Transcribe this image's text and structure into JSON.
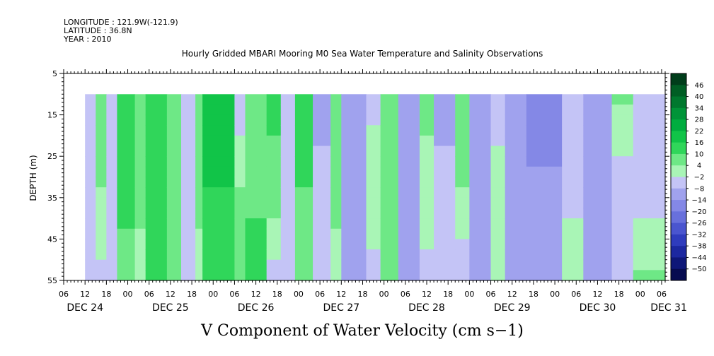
{
  "header": {
    "longitude": "LONGITUDE : 121.9W(-121.9)",
    "latitude": "LATITUDE : 36.8N",
    "year": "YEAR : 2010"
  },
  "chart_data": {
    "type": "heatmap",
    "title": "Hourly Gridded MBARI Mooring M0 Sea Water Temperature and Salinity Observations",
    "xlabel": "V Component of Water Velocity (cm s−1)",
    "ylabel": "DEPTH (m)",
    "ylim": [
      55,
      5
    ],
    "xlim": [
      "DEC 24 06",
      "DEC 31 07"
    ],
    "y_ticks": [
      "5",
      "15",
      "25",
      "35",
      "45",
      "55"
    ],
    "hour_ticks": [
      "06",
      "12",
      "18",
      "00",
      "06",
      "12",
      "18",
      "00",
      "06",
      "12",
      "18",
      "00",
      "06",
      "12",
      "18",
      "00",
      "06",
      "12",
      "18",
      "00",
      "06",
      "12",
      "18",
      "00",
      "06",
      "12",
      "18",
      "00",
      "06"
    ],
    "date_ticks": [
      "DEC 24",
      "DEC 25",
      "DEC 26",
      "DEC 27",
      "DEC 28",
      "DEC 29",
      "DEC 30",
      "DEC 31"
    ],
    "data_depth_range": [
      10,
      55
    ],
    "data_start": "DEC 24 12",
    "colorbar_labels": [
      "46",
      "40",
      "34",
      "28",
      "22",
      "16",
      "10",
      "4",
      "−2",
      "−8",
      "−14",
      "−20",
      "−26",
      "−32",
      "−38",
      "−44",
      "−50"
    ],
    "colorbar_colors": [
      "#003d1a",
      "#005e24",
      "#00782e",
      "#009438",
      "#00ad3f",
      "#11c448",
      "#30d65a",
      "#6ee886",
      "#a9f5b6",
      "#c4c4f6",
      "#a0a2ee",
      "#8488e6",
      "#6870dc",
      "#4a55cf",
      "#2f3cbd",
      "#1c28a0",
      "#0e1778",
      "#060b50"
    ],
    "columns": [
      {
        "start": "DEC 24 12",
        "values": [
          -6,
          -6,
          -8
        ]
      },
      {
        "start": "DEC 24 15",
        "values": [
          5,
          4,
          -4
        ]
      },
      {
        "start": "DEC 24 18",
        "values": [
          -4,
          -4,
          -6
        ]
      },
      {
        "start": "DEC 24 21",
        "values": [
          14,
          12,
          8
        ]
      },
      {
        "start": "DEC 25 02",
        "values": [
          6,
          5,
          3
        ]
      },
      {
        "start": "DEC 25 05",
        "values": [
          14,
          13,
          12
        ]
      },
      {
        "start": "DEC 25 11",
        "values": [
          10,
          7,
          5
        ]
      },
      {
        "start": "DEC 25 15",
        "values": [
          -5,
          -6,
          -6
        ]
      },
      {
        "start": "DEC 25 19",
        "values": [
          8,
          5,
          3
        ]
      },
      {
        "start": "DEC 25 21",
        "values": [
          18,
          16,
          13
        ]
      },
      {
        "start": "DEC 26 06",
        "values": [
          -7,
          4,
          8
        ]
      },
      {
        "start": "DEC 26 09",
        "values": [
          10,
          9,
          12
        ]
      },
      {
        "start": "DEC 26 15",
        "values": [
          12,
          8,
          -4
        ]
      },
      {
        "start": "DEC 26 19",
        "values": [
          -8,
          -6,
          -5
        ]
      },
      {
        "start": "DEC 26 23",
        "values": [
          12,
          10,
          6
        ]
      },
      {
        "start": "DEC 27 04",
        "values": [
          -10,
          -6,
          -3
        ]
      },
      {
        "start": "DEC 27 09",
        "values": [
          8,
          5,
          3
        ]
      },
      {
        "start": "DEC 27 12",
        "values": [
          -9,
          -10,
          -11
        ]
      },
      {
        "start": "DEC 27 19",
        "values": [
          -5,
          3,
          -4
        ]
      },
      {
        "start": "DEC 27 23",
        "values": [
          10,
          10,
          9
        ]
      },
      {
        "start": "DEC 28 04",
        "values": [
          -14,
          -10,
          -8
        ]
      },
      {
        "start": "DEC 28 10",
        "values": [
          5,
          3,
          -4
        ]
      },
      {
        "start": "DEC 28 14",
        "values": [
          -9,
          -7,
          -6
        ]
      },
      {
        "start": "DEC 28 20",
        "values": [
          6,
          4,
          -6
        ]
      },
      {
        "start": "DEC 29 00",
        "values": [
          -13,
          -9,
          -8
        ]
      },
      {
        "start": "DEC 29 06",
        "values": [
          -8,
          3,
          4
        ]
      },
      {
        "start": "DEC 29 10",
        "values": [
          -11,
          -10,
          -8
        ]
      },
      {
        "start": "DEC 29 16",
        "values": [
          -17,
          -13,
          -10
        ]
      },
      {
        "start": "DEC 30 02",
        "values": [
          -6,
          -5,
          4
        ]
      },
      {
        "start": "DEC 30 08",
        "values": [
          -10,
          -11,
          -14
        ]
      },
      {
        "start": "DEC 30 16",
        "values": [
          6,
          -6,
          -8
        ]
      },
      {
        "start": "DEC 30 22",
        "values": [
          -7,
          -6,
          5
        ]
      }
    ],
    "data_end": "DEC 31 07"
  }
}
